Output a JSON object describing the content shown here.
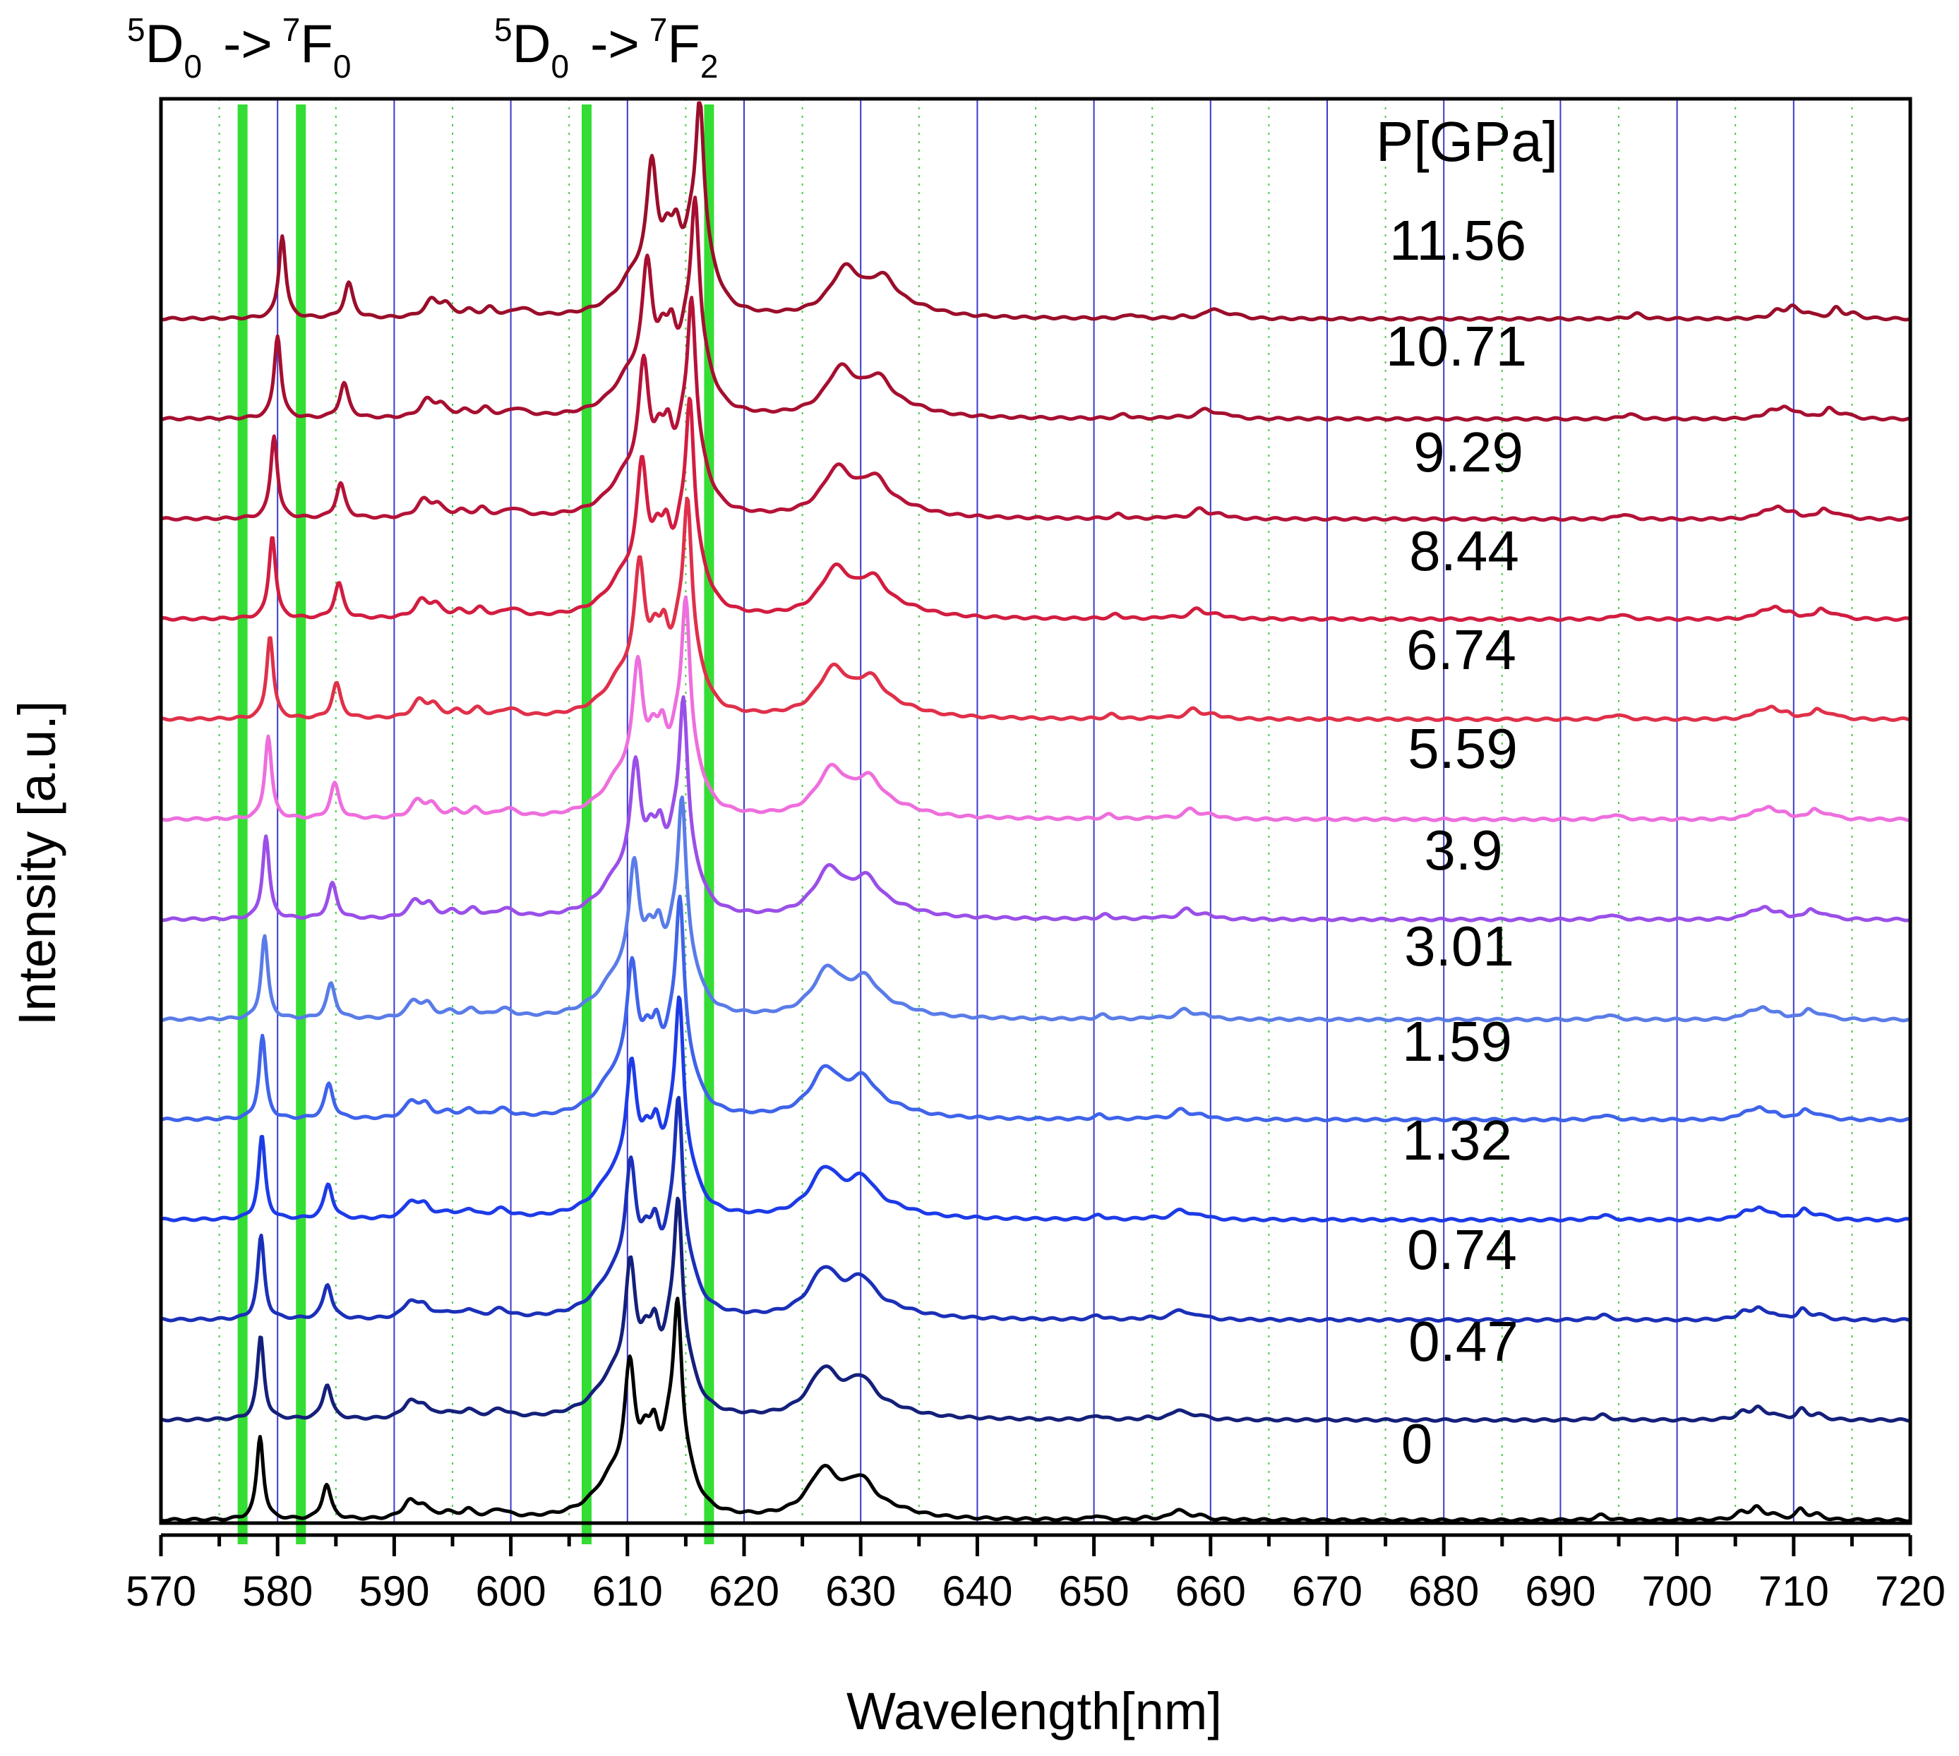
{
  "chart_data": {
    "type": "line",
    "xlabel": "Wavelength[nm]",
    "ylabel": "Intensity [a.u.]",
    "xlim": [
      570,
      720
    ],
    "x_ticks": [
      "570",
      "580",
      "590",
      "600",
      "610",
      "620",
      "630",
      "640",
      "650",
      "660",
      "670",
      "680",
      "690",
      "700",
      "710",
      "720"
    ],
    "legend_title": "P[GPa]",
    "grid": "vertical major (blue) and minor (dotted green)",
    "band_labels": [
      {
        "pre_sup": "5",
        "main": "D",
        "sub": "0",
        "arrow": "->",
        "to_sup": "7",
        "to_main": "F",
        "to_sub": "0",
        "text": "5D0 -> 7F0"
      },
      {
        "pre_sup": "5",
        "main": "D",
        "sub": "0",
        "arrow": "->",
        "to_sup": "7",
        "to_main": "F",
        "to_sub": "2",
        "text": "5D0 -> 7F2"
      }
    ],
    "marker_lines_nm": [
      577,
      582,
      606.5,
      617
    ],
    "marker_color": "#33dd33",
    "peaks_at_0GPa_nm": [
      578.5,
      584.2,
      591.5,
      596,
      599,
      610.2,
      612.2,
      614.3,
      626.8,
      630,
      650.2,
      657.2,
      693.5,
      706.8,
      710.6
    ],
    "series": [
      {
        "name": "11.56",
        "label": "11.56",
        "color": "#9a0e2a",
        "shift_nm": 1.9
      },
      {
        "name": "10.71",
        "label": "10.71",
        "color": "#a60f30",
        "shift_nm": 1.5
      },
      {
        "name": "9.29",
        "label": "9.29",
        "color": "#b51238",
        "shift_nm": 1.2
      },
      {
        "name": "8.44",
        "label": "8.44",
        "color": "#d21d40",
        "shift_nm": 1.05
      },
      {
        "name": "6.74",
        "label": "6.74",
        "color": "#e0304a",
        "shift_nm": 0.85
      },
      {
        "name": "5.59",
        "label": "5.59",
        "color": "#ee6edd",
        "shift_nm": 0.7
      },
      {
        "name": "3.9",
        "label": "3.9",
        "color": "#9a4fe8",
        "shift_nm": 0.5
      },
      {
        "name": "3.01",
        "label": "3.01",
        "color": "#5a7ce8",
        "shift_nm": 0.38
      },
      {
        "name": "1.59",
        "label": "1.59",
        "color": "#3f63ea",
        "shift_nm": 0.2
      },
      {
        "name": "1.32",
        "label": "1.32",
        "color": "#1d3be8",
        "shift_nm": 0.15
      },
      {
        "name": "0.74",
        "label": "0.74",
        "color": "#1b30b8",
        "shift_nm": 0.08
      },
      {
        "name": "0.47",
        "label": "0.47",
        "color": "#14207a",
        "shift_nm": 0.05
      },
      {
        "name": "0",
        "label": "0",
        "color": "#000000",
        "shift_nm": 0
      }
    ]
  }
}
